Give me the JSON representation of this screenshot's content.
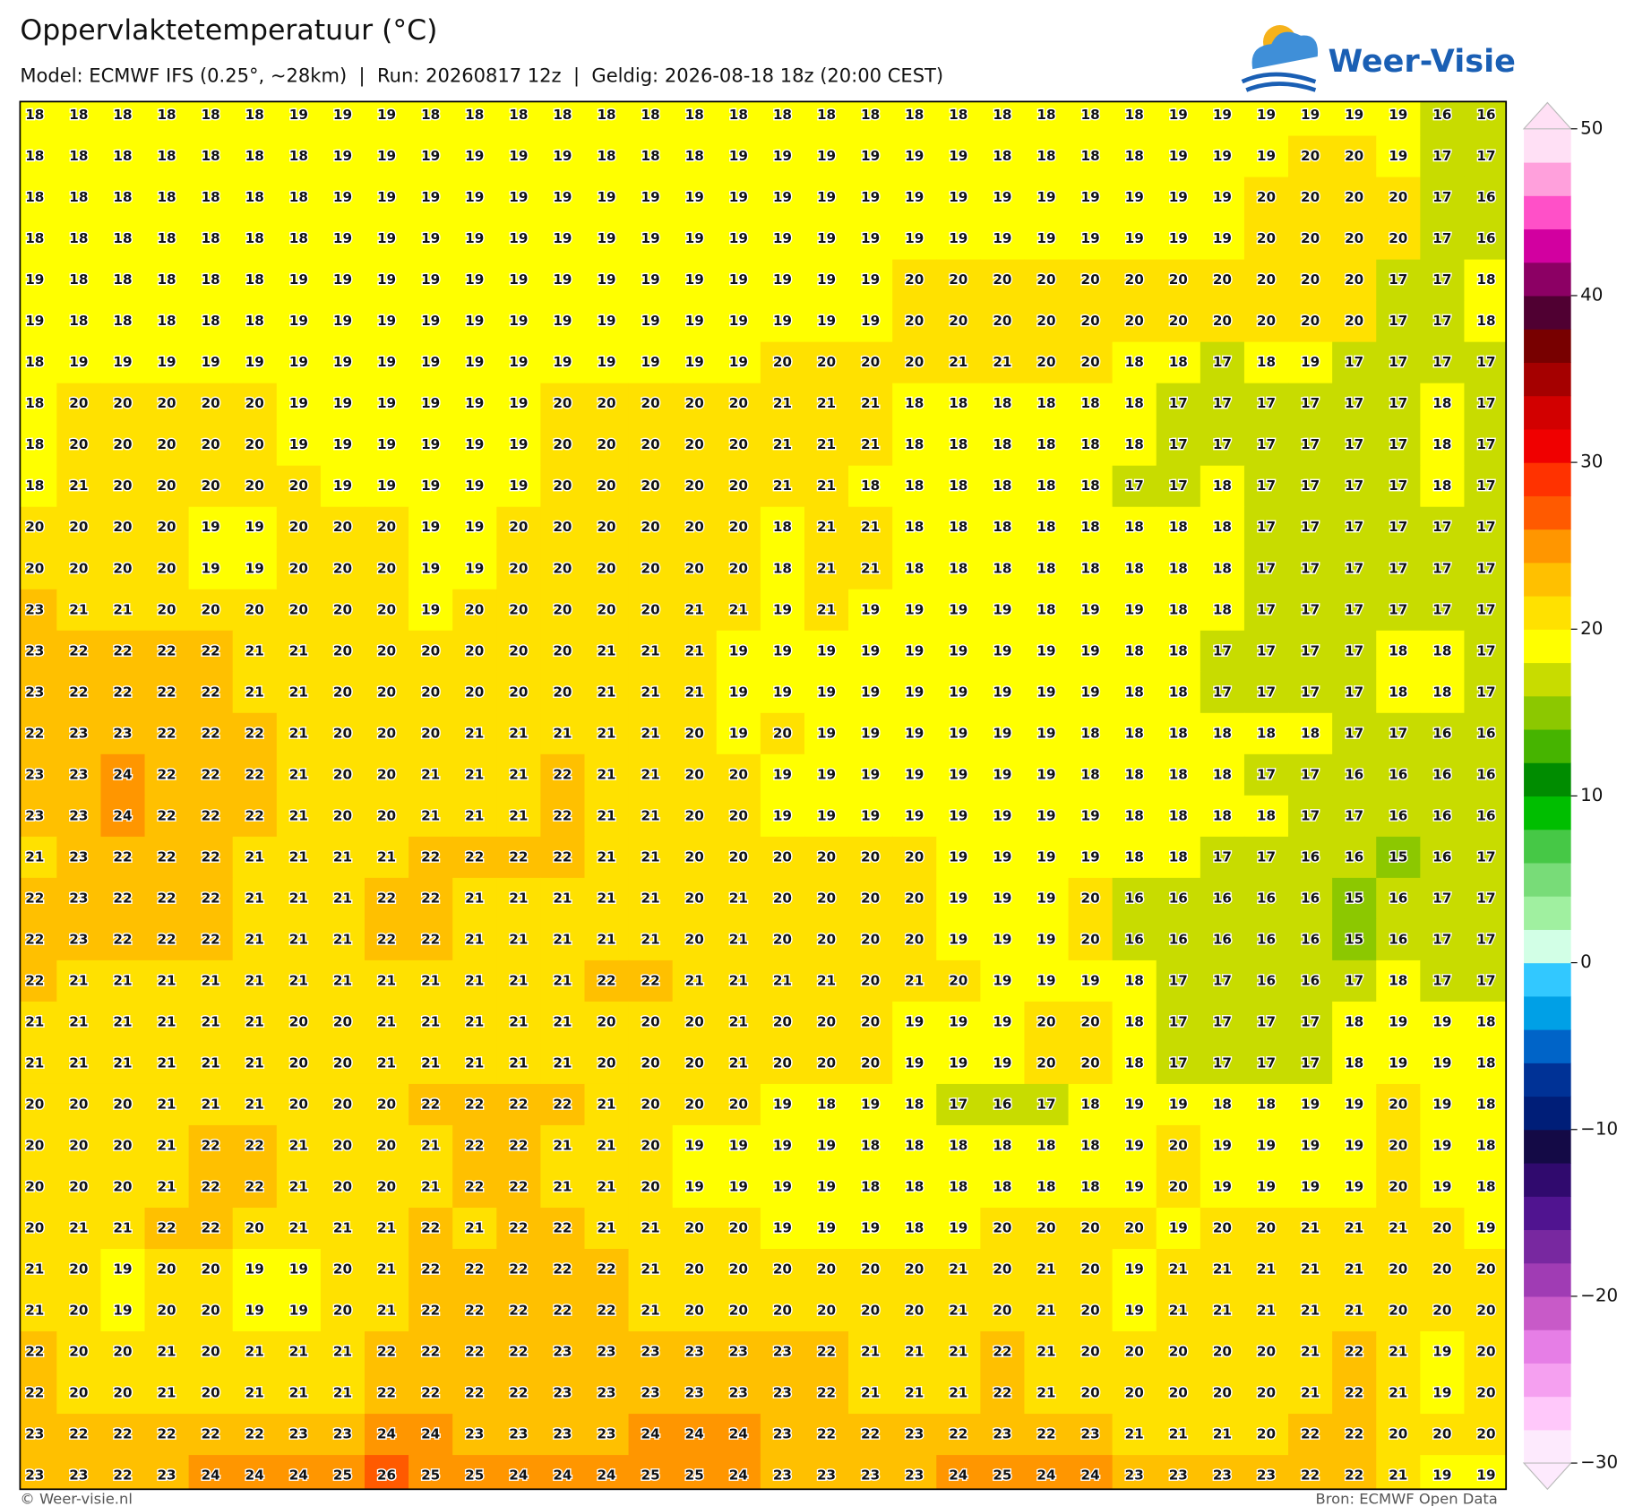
{
  "header": {
    "title": "Oppervlaktetemperatuur (°C)",
    "subtitle": "Model: ECMWF IFS (0.25°, ~28km)  |  Run: 20260817 12z  |  Geldig: 2026-08-18 18z (20:00 CEST)"
  },
  "logo": "Weer-Visie",
  "map": {
    "values": [
      [
        18,
        18,
        18,
        18,
        18,
        18,
        19,
        19,
        19,
        18,
        18,
        18,
        18,
        18,
        18,
        18,
        18,
        18,
        18,
        18,
        18,
        18,
        18,
        18,
        18,
        18,
        19,
        19,
        19,
        19,
        19,
        19,
        16,
        16
      ],
      [
        18,
        18,
        18,
        18,
        18,
        18,
        18,
        19,
        19,
        19,
        19,
        19,
        19,
        18,
        18,
        18,
        19,
        19,
        19,
        19,
        19,
        19,
        18,
        18,
        18,
        18,
        19,
        19,
        19,
        20,
        20,
        19,
        17,
        17
      ],
      [
        18,
        18,
        18,
        18,
        18,
        18,
        18,
        19,
        19,
        19,
        19,
        19,
        19,
        19,
        19,
        19,
        19,
        19,
        19,
        19,
        19,
        19,
        19,
        19,
        19,
        19,
        19,
        19,
        20,
        20,
        20,
        20,
        17,
        16
      ],
      [
        18,
        18,
        18,
        18,
        18,
        18,
        18,
        19,
        19,
        19,
        19,
        19,
        19,
        19,
        19,
        19,
        19,
        19,
        19,
        19,
        19,
        19,
        19,
        19,
        19,
        19,
        19,
        19,
        20,
        20,
        20,
        20,
        17,
        16
      ],
      [
        19,
        18,
        18,
        18,
        18,
        18,
        19,
        19,
        19,
        19,
        19,
        19,
        19,
        19,
        19,
        19,
        19,
        19,
        19,
        19,
        20,
        20,
        20,
        20,
        20,
        20,
        20,
        20,
        20,
        20,
        20,
        17,
        17,
        18
      ],
      [
        19,
        18,
        18,
        18,
        18,
        18,
        19,
        19,
        19,
        19,
        19,
        19,
        19,
        19,
        19,
        19,
        19,
        19,
        19,
        19,
        20,
        20,
        20,
        20,
        20,
        20,
        20,
        20,
        20,
        20,
        20,
        17,
        17,
        18
      ],
      [
        18,
        19,
        19,
        19,
        19,
        19,
        19,
        19,
        19,
        19,
        19,
        19,
        19,
        19,
        19,
        19,
        19,
        20,
        20,
        20,
        20,
        21,
        21,
        20,
        20,
        18,
        18,
        17,
        18,
        19,
        17,
        17,
        17,
        17
      ],
      [
        18,
        20,
        20,
        20,
        20,
        20,
        19,
        19,
        19,
        19,
        19,
        19,
        20,
        20,
        20,
        20,
        20,
        21,
        21,
        21,
        18,
        18,
        18,
        18,
        18,
        18,
        17,
        17,
        17,
        17,
        17,
        17,
        18,
        17
      ],
      [
        18,
        20,
        20,
        20,
        20,
        20,
        19,
        19,
        19,
        19,
        19,
        19,
        20,
        20,
        20,
        20,
        20,
        21,
        21,
        21,
        18,
        18,
        18,
        18,
        18,
        18,
        17,
        17,
        17,
        17,
        17,
        17,
        18,
        17
      ],
      [
        18,
        21,
        20,
        20,
        20,
        20,
        20,
        19,
        19,
        19,
        19,
        19,
        20,
        20,
        20,
        20,
        20,
        21,
        21,
        18,
        18,
        18,
        18,
        18,
        18,
        17,
        17,
        18,
        17,
        17,
        17,
        17,
        18,
        17
      ],
      [
        20,
        20,
        20,
        20,
        19,
        19,
        20,
        20,
        20,
        19,
        19,
        20,
        20,
        20,
        20,
        20,
        20,
        18,
        21,
        21,
        18,
        18,
        18,
        18,
        18,
        18,
        18,
        18,
        17,
        17,
        17,
        17,
        17,
        17
      ],
      [
        20,
        20,
        20,
        20,
        19,
        19,
        20,
        20,
        20,
        19,
        19,
        20,
        20,
        20,
        20,
        20,
        20,
        18,
        21,
        21,
        18,
        18,
        18,
        18,
        18,
        18,
        18,
        18,
        17,
        17,
        17,
        17,
        17,
        17
      ],
      [
        23,
        21,
        21,
        20,
        20,
        20,
        20,
        20,
        20,
        19,
        20,
        20,
        20,
        20,
        20,
        21,
        21,
        19,
        21,
        19,
        19,
        19,
        19,
        18,
        19,
        19,
        18,
        18,
        17,
        17,
        17,
        17,
        17,
        17
      ],
      [
        23,
        22,
        22,
        22,
        22,
        21,
        21,
        20,
        20,
        20,
        20,
        20,
        20,
        21,
        21,
        21,
        19,
        19,
        19,
        19,
        19,
        19,
        19,
        19,
        19,
        18,
        18,
        17,
        17,
        17,
        17,
        18,
        18,
        17
      ],
      [
        23,
        22,
        22,
        22,
        22,
        21,
        21,
        20,
        20,
        20,
        20,
        20,
        20,
        21,
        21,
        21,
        19,
        19,
        19,
        19,
        19,
        19,
        19,
        19,
        19,
        18,
        18,
        17,
        17,
        17,
        17,
        18,
        18,
        17
      ],
      [
        22,
        23,
        23,
        22,
        22,
        22,
        21,
        20,
        20,
        20,
        21,
        21,
        21,
        21,
        21,
        20,
        19,
        20,
        19,
        19,
        19,
        19,
        19,
        19,
        18,
        18,
        18,
        18,
        18,
        18,
        17,
        17,
        16,
        16
      ],
      [
        23,
        23,
        24,
        22,
        22,
        22,
        21,
        20,
        20,
        21,
        21,
        21,
        22,
        21,
        21,
        20,
        20,
        19,
        19,
        19,
        19,
        19,
        19,
        19,
        18,
        18,
        18,
        18,
        17,
        17,
        16,
        16,
        16,
        16
      ],
      [
        23,
        23,
        24,
        22,
        22,
        22,
        21,
        20,
        20,
        21,
        21,
        21,
        22,
        21,
        21,
        20,
        20,
        19,
        19,
        19,
        19,
        19,
        19,
        19,
        19,
        18,
        18,
        18,
        18,
        17,
        17,
        16,
        16,
        16
      ],
      [
        21,
        23,
        22,
        22,
        22,
        21,
        21,
        21,
        21,
        22,
        22,
        22,
        22,
        21,
        21,
        20,
        20,
        20,
        20,
        20,
        20,
        19,
        19,
        19,
        19,
        18,
        18,
        17,
        17,
        16,
        16,
        15,
        16,
        17
      ],
      [
        22,
        23,
        22,
        22,
        22,
        21,
        21,
        21,
        22,
        22,
        21,
        21,
        21,
        21,
        21,
        20,
        21,
        20,
        20,
        20,
        20,
        19,
        19,
        19,
        20,
        16,
        16,
        16,
        16,
        16,
        15,
        16,
        17,
        17
      ],
      [
        22,
        23,
        22,
        22,
        22,
        21,
        21,
        21,
        22,
        22,
        21,
        21,
        21,
        21,
        21,
        20,
        21,
        20,
        20,
        20,
        20,
        19,
        19,
        19,
        20,
        16,
        16,
        16,
        16,
        16,
        15,
        16,
        17,
        17
      ],
      [
        22,
        21,
        21,
        21,
        21,
        21,
        21,
        21,
        21,
        21,
        21,
        21,
        21,
        22,
        22,
        21,
        21,
        21,
        21,
        20,
        21,
        20,
        19,
        19,
        19,
        18,
        17,
        17,
        16,
        16,
        17,
        18,
        17,
        17
      ],
      [
        21,
        21,
        21,
        21,
        21,
        21,
        20,
        20,
        21,
        21,
        21,
        21,
        21,
        20,
        20,
        20,
        21,
        20,
        20,
        20,
        19,
        19,
        19,
        20,
        20,
        18,
        17,
        17,
        17,
        17,
        18,
        19,
        19,
        18
      ],
      [
        21,
        21,
        21,
        21,
        21,
        21,
        20,
        20,
        21,
        21,
        21,
        21,
        21,
        20,
        20,
        20,
        21,
        20,
        20,
        20,
        19,
        19,
        19,
        20,
        20,
        18,
        17,
        17,
        17,
        17,
        18,
        19,
        19,
        18
      ],
      [
        20,
        20,
        20,
        21,
        21,
        21,
        20,
        20,
        20,
        22,
        22,
        22,
        22,
        21,
        20,
        20,
        20,
        19,
        18,
        19,
        18,
        17,
        16,
        17,
        18,
        19,
        19,
        18,
        18,
        19,
        19,
        20,
        19,
        18
      ],
      [
        20,
        20,
        20,
        21,
        22,
        22,
        21,
        20,
        20,
        21,
        22,
        22,
        21,
        21,
        20,
        19,
        19,
        19,
        19,
        18,
        18,
        18,
        18,
        18,
        18,
        19,
        20,
        19,
        19,
        19,
        19,
        20,
        19,
        18
      ],
      [
        20,
        20,
        20,
        21,
        22,
        22,
        21,
        20,
        20,
        21,
        22,
        22,
        21,
        21,
        20,
        19,
        19,
        19,
        19,
        18,
        18,
        18,
        18,
        18,
        18,
        19,
        20,
        19,
        19,
        19,
        19,
        20,
        19,
        18
      ],
      [
        20,
        21,
        21,
        22,
        22,
        20,
        21,
        21,
        21,
        22,
        21,
        22,
        22,
        21,
        21,
        20,
        20,
        19,
        19,
        19,
        18,
        19,
        20,
        20,
        20,
        20,
        19,
        20,
        20,
        21,
        21,
        21,
        20,
        19
      ],
      [
        21,
        20,
        19,
        20,
        20,
        19,
        19,
        20,
        21,
        22,
        22,
        22,
        22,
        22,
        21,
        20,
        20,
        20,
        20,
        20,
        20,
        21,
        20,
        21,
        20,
        19,
        21,
        21,
        21,
        21,
        21,
        20,
        20,
        20
      ],
      [
        21,
        20,
        19,
        20,
        20,
        19,
        19,
        20,
        21,
        22,
        22,
        22,
        22,
        22,
        21,
        20,
        20,
        20,
        20,
        20,
        20,
        21,
        20,
        21,
        20,
        19,
        21,
        21,
        21,
        21,
        21,
        20,
        20,
        20
      ],
      [
        22,
        20,
        20,
        21,
        20,
        21,
        21,
        21,
        22,
        22,
        22,
        22,
        23,
        23,
        23,
        23,
        23,
        23,
        22,
        21,
        21,
        21,
        22,
        21,
        20,
        20,
        20,
        20,
        20,
        21,
        22,
        21,
        19,
        20
      ],
      [
        22,
        20,
        20,
        21,
        20,
        21,
        21,
        21,
        22,
        22,
        22,
        22,
        23,
        23,
        23,
        23,
        23,
        23,
        22,
        21,
        21,
        21,
        22,
        21,
        20,
        20,
        20,
        20,
        20,
        21,
        22,
        21,
        19,
        20
      ],
      [
        23,
        22,
        22,
        22,
        22,
        22,
        23,
        23,
        24,
        24,
        23,
        23,
        23,
        23,
        24,
        24,
        24,
        23,
        22,
        22,
        23,
        22,
        23,
        22,
        23,
        21,
        21,
        21,
        20,
        22,
        22,
        20,
        20,
        20
      ],
      [
        23,
        23,
        22,
        23,
        24,
        24,
        24,
        25,
        26,
        25,
        25,
        24,
        24,
        24,
        25,
        25,
        24,
        23,
        23,
        23,
        23,
        24,
        25,
        24,
        24,
        23,
        23,
        23,
        23,
        22,
        22,
        21,
        19,
        19
      ]
    ]
  },
  "colorbar": {
    "lim": [
      -30,
      50
    ],
    "ticks": [
      50,
      40,
      30,
      20,
      10,
      0,
      {
        "value": -10,
        "label": "−10"
      },
      {
        "value": -20,
        "label": "−20"
      },
      {
        "value": -30,
        "label": "−30"
      }
    ],
    "colors": [
      "#fdeafd",
      "#ffc8fa",
      "#f5a0f0",
      "#e67ee6",
      "#c85ac8",
      "#a03cb4",
      "#7828a0",
      "#501490",
      "#300a6e",
      "#140a46",
      "#001e78",
      "#003296",
      "#0064c8",
      "#00a0e6",
      "#32c8ff",
      "#d2ffe6",
      "#a0f0a0",
      "#78dc78",
      "#46c846",
      "#00be00",
      "#008c00",
      "#46b400",
      "#8cc800",
      "#c8dc00",
      "#ffff00",
      "#ffe100",
      "#ffc000",
      "#ff9600",
      "#ff5a00",
      "#ff3200",
      "#f00000",
      "#d20000",
      "#a50000",
      "#780000",
      "#500032",
      "#8c0064",
      "#d200a0",
      "#ff50c8",
      "#ffa0dc",
      "#ffe0f5"
    ]
  },
  "footer": {
    "left": "© Weer-visie.nl",
    "right": "Bron: ECMWF Open Data"
  }
}
